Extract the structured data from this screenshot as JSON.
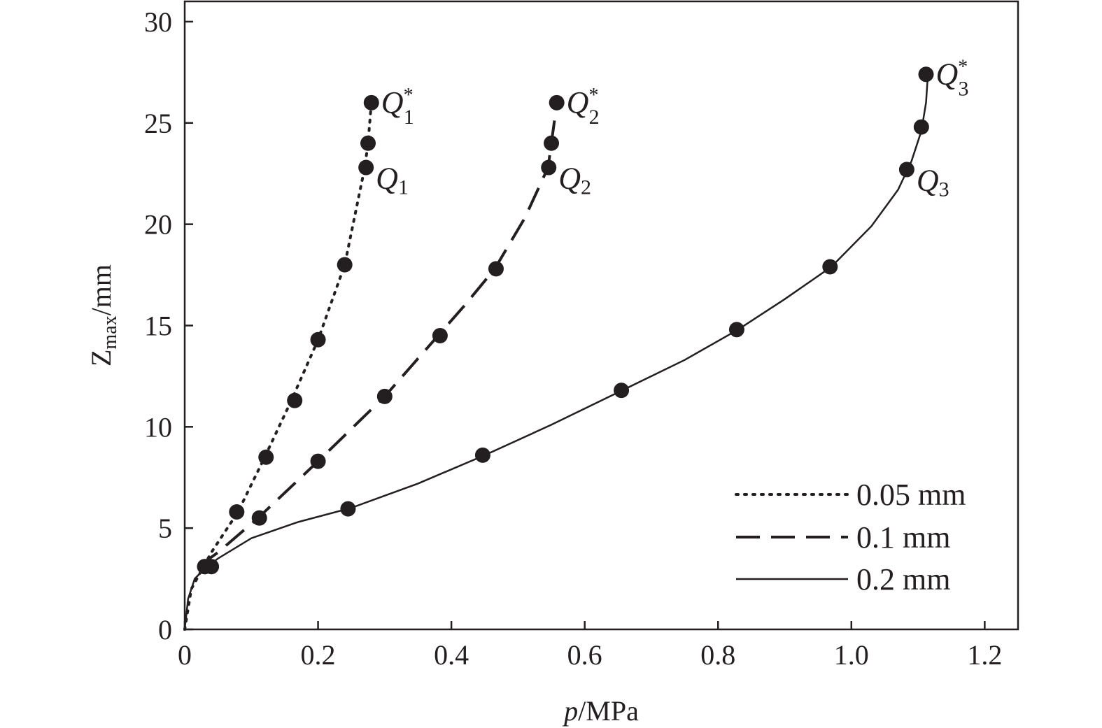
{
  "chart_data": {
    "type": "line",
    "xlabel_italic": "p",
    "xlabel_rest": "/MPa",
    "ylabel_main": "Z",
    "ylabel_sub": "max",
    "ylabel_rest": "/mm",
    "xlim": [
      0,
      1.25
    ],
    "ylim": [
      0,
      31
    ],
    "xticks": [
      0,
      0.2,
      0.4,
      0.6,
      0.8,
      1.0,
      1.2
    ],
    "xtick_labels": [
      "0",
      "0.2",
      "0.4",
      "0.6",
      "0.8",
      "1.0",
      "1.2"
    ],
    "yticks": [
      0,
      5,
      10,
      15,
      20,
      25,
      30
    ],
    "ytick_labels": [
      "0",
      "5",
      "10",
      "15",
      "20",
      "25",
      "30"
    ],
    "legend_position": "bottom-right",
    "series": [
      {
        "name": "0.05 mm",
        "style": "dotted",
        "curve": [
          [
            0,
            0
          ],
          [
            0.01,
            2.0
          ],
          [
            0.04,
            3.8
          ],
          [
            0.08,
            5.8
          ],
          [
            0.12,
            8.5
          ],
          [
            0.16,
            11.3
          ],
          [
            0.2,
            14.3
          ],
          [
            0.24,
            18.0
          ],
          [
            0.27,
            22.8
          ],
          [
            0.275,
            24.0
          ],
          [
            0.28,
            26.0
          ]
        ],
        "points": [
          [
            0.03,
            3.1
          ],
          [
            0.078,
            5.8
          ],
          [
            0.122,
            8.5
          ],
          [
            0.165,
            11.3
          ],
          [
            0.2,
            14.3
          ],
          [
            0.24,
            18.0
          ],
          [
            0.272,
            22.8
          ],
          [
            0.275,
            24.0
          ],
          [
            0.28,
            26.0
          ]
        ]
      },
      {
        "name": "0.1 mm",
        "style": "dashed",
        "curve": [
          [
            0.02,
            3.1
          ],
          [
            0.05,
            3.8
          ],
          [
            0.11,
            5.5
          ],
          [
            0.2,
            8.3
          ],
          [
            0.3,
            11.5
          ],
          [
            0.34,
            13.0
          ],
          [
            0.38,
            14.5
          ],
          [
            0.42,
            16.0
          ],
          [
            0.465,
            17.8
          ],
          [
            0.51,
            20.3
          ],
          [
            0.545,
            22.8
          ],
          [
            0.55,
            24.0
          ],
          [
            0.555,
            25.2
          ]
        ],
        "points": [
          [
            0.04,
            3.1
          ],
          [
            0.112,
            5.5
          ],
          [
            0.2,
            8.3
          ],
          [
            0.3,
            11.5
          ],
          [
            0.383,
            14.5
          ],
          [
            0.467,
            17.8
          ],
          [
            0.546,
            22.8
          ],
          [
            0.55,
            24.0
          ],
          [
            0.558,
            26.0
          ]
        ]
      },
      {
        "name": "0.2 mm",
        "style": "solid",
        "curve": [
          [
            0,
            0
          ],
          [
            0.005,
            1.5
          ],
          [
            0.015,
            2.5
          ],
          [
            0.03,
            3.0
          ],
          [
            0.05,
            3.5
          ],
          [
            0.1,
            4.5
          ],
          [
            0.17,
            5.3
          ],
          [
            0.25,
            6.0
          ],
          [
            0.35,
            7.2
          ],
          [
            0.45,
            8.6
          ],
          [
            0.55,
            10.1
          ],
          [
            0.65,
            11.7
          ],
          [
            0.75,
            13.3
          ],
          [
            0.83,
            14.8
          ],
          [
            0.9,
            16.3
          ],
          [
            0.97,
            17.9
          ],
          [
            1.03,
            19.9
          ],
          [
            1.07,
            21.7
          ],
          [
            1.09,
            23.1
          ],
          [
            1.105,
            24.6
          ],
          [
            1.112,
            26.0
          ],
          [
            1.115,
            27.5
          ]
        ],
        "points": [
          [
            0.03,
            3.1
          ],
          [
            0.245,
            5.95
          ],
          [
            0.447,
            8.6
          ],
          [
            0.655,
            11.8
          ],
          [
            0.828,
            14.8
          ],
          [
            0.968,
            17.9
          ],
          [
            1.083,
            22.7
          ],
          [
            1.105,
            24.8
          ],
          [
            1.112,
            27.4
          ]
        ]
      }
    ],
    "annotations": [
      {
        "letter": "Q",
        "sub": "1",
        "sup": "*",
        "x": 0.28,
        "y": 26.0
      },
      {
        "letter": "Q",
        "sub": "1",
        "sup": "",
        "x": 0.272,
        "y": 22.8
      },
      {
        "letter": "Q",
        "sub": "2",
        "sup": "*",
        "x": 0.558,
        "y": 26.0
      },
      {
        "letter": "Q",
        "sub": "2",
        "sup": "",
        "x": 0.546,
        "y": 22.8
      },
      {
        "letter": "Q",
        "sub": "3",
        "sup": "*",
        "x": 1.112,
        "y": 27.4
      },
      {
        "letter": "Q",
        "sub": "3",
        "sup": "",
        "x": 1.083,
        "y": 22.7
      }
    ]
  }
}
